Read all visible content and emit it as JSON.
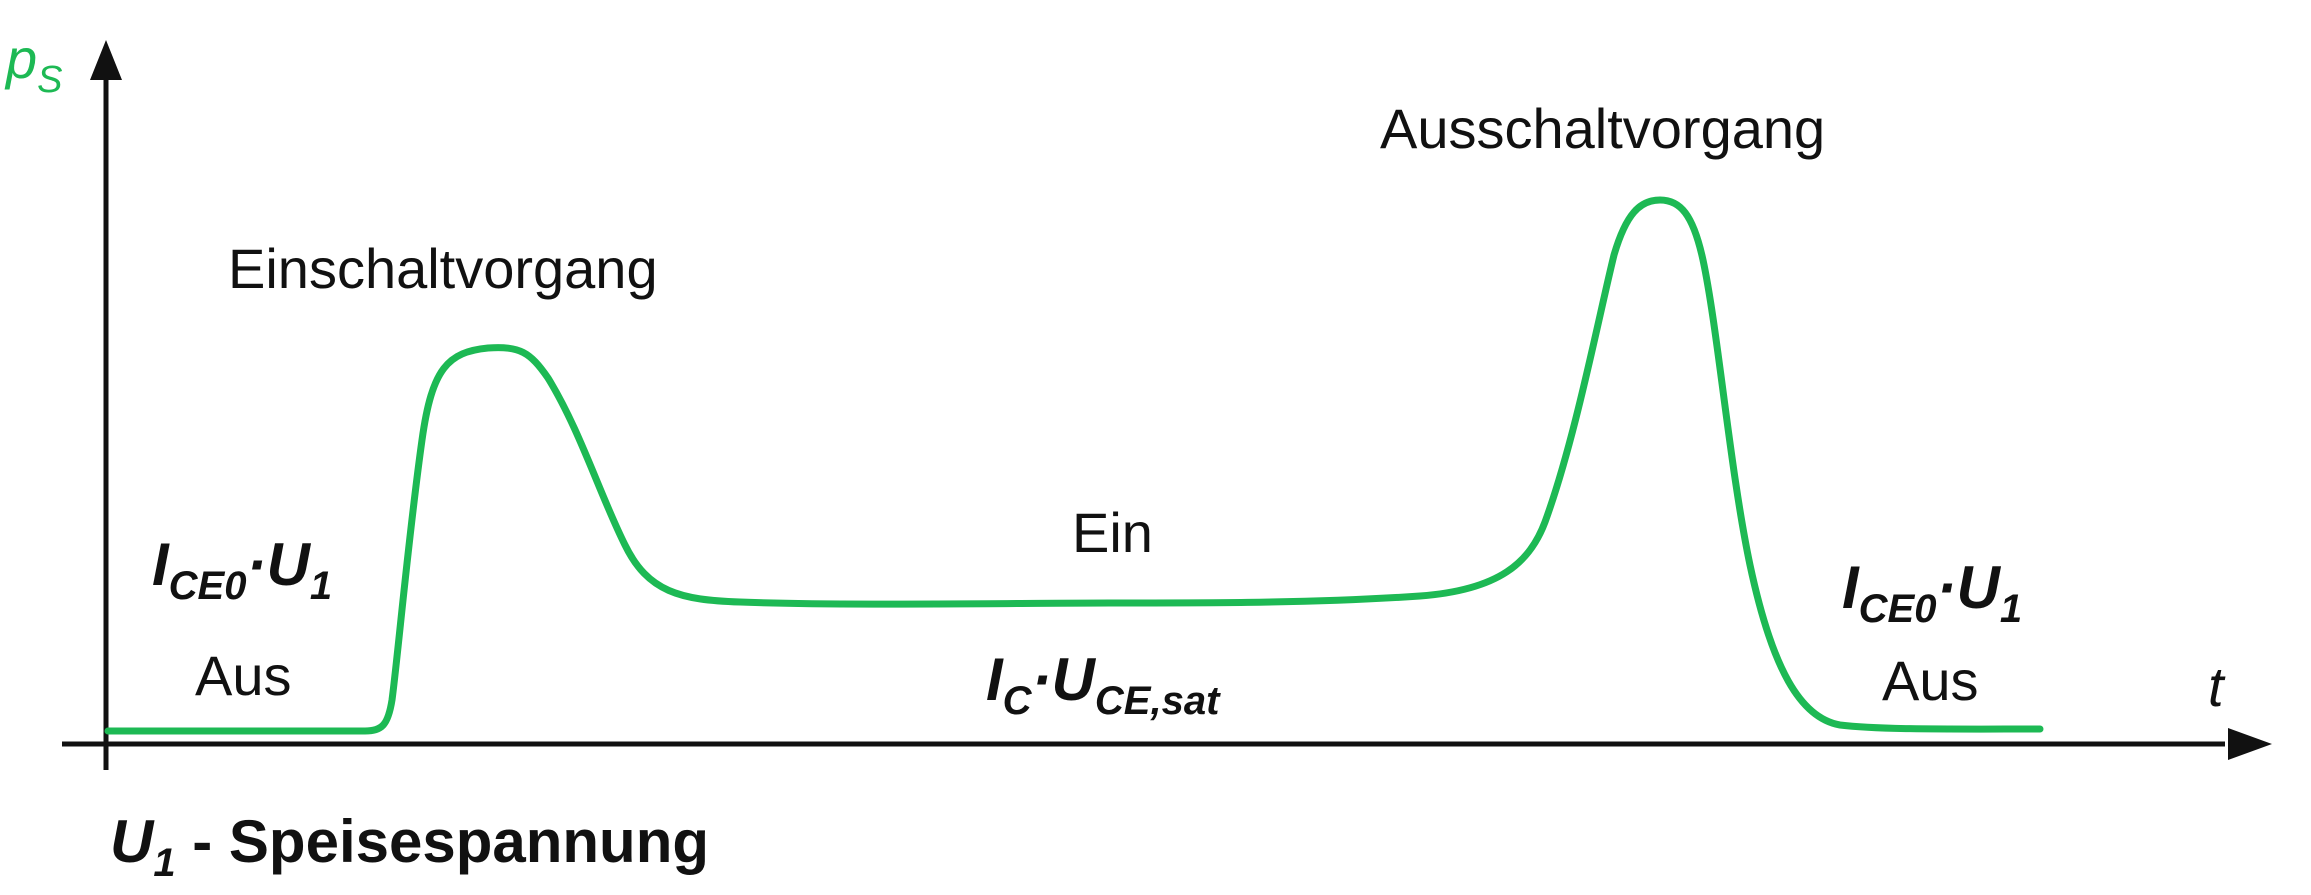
{
  "colors": {
    "curve": "#1db954",
    "axis": "#111111",
    "text": "#111111",
    "axis_label": "#1db954"
  },
  "axes": {
    "y_label_main": "p",
    "y_label_sub": "S",
    "x_label": "t"
  },
  "phases": {
    "turn_on": "Einschaltvorgang",
    "turn_off": "Ausschaltvorgang",
    "on": "Ein",
    "off_left": "Aus",
    "off_right": "Aus"
  },
  "formulas": {
    "leakage_left": {
      "i": "I",
      "i_sub": "CE0",
      "dot": "·",
      "u": "U",
      "u_sub": "1"
    },
    "leakage_right": {
      "i": "I",
      "i_sub": "CE0",
      "dot": "·",
      "u": "U",
      "u_sub": "1"
    },
    "saturation": {
      "i": "I",
      "i_sub": "C",
      "dot": "·",
      "u": "U",
      "u_sub": "CE,sat"
    }
  },
  "footnote": {
    "symbol": "U",
    "symbol_sub": "1",
    "text": " - Speisespannung"
  }
}
